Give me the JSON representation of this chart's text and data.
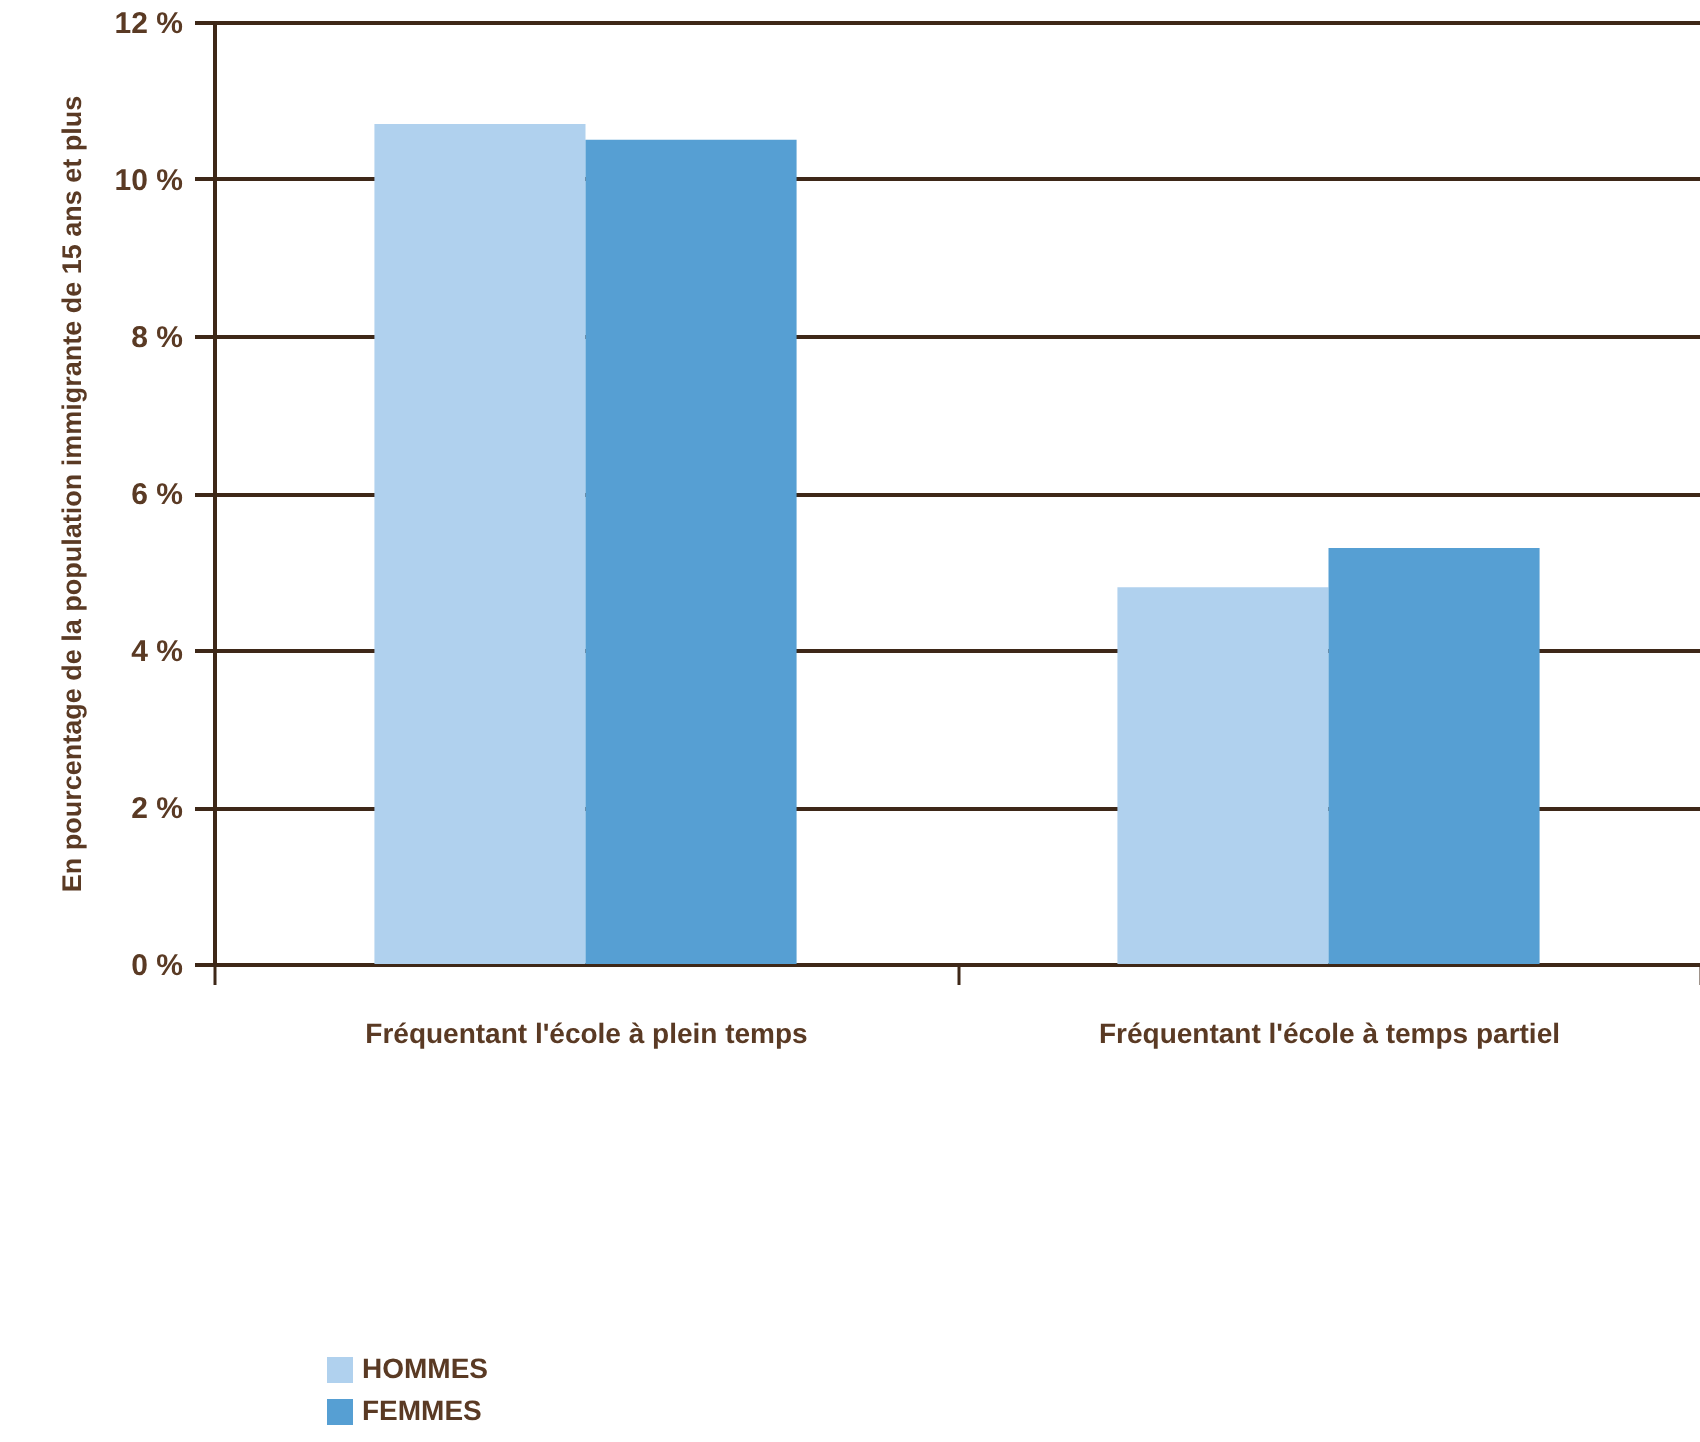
{
  "chart_data": {
    "type": "bar",
    "ylabel": "En pourcentage de la population immigrante de 15 ans et plus",
    "categories": [
      "Fréquentant l'école à plein temps",
      "Fréquentant l'école à temps partiel"
    ],
    "series": [
      {
        "name": "HOMMES",
        "color": "#b0d1ee",
        "values": [
          10.7,
          4.8
        ]
      },
      {
        "name": "FEMMES",
        "color": "#569fd3",
        "values": [
          10.5,
          5.3
        ]
      }
    ],
    "ylim": [
      0,
      12
    ],
    "yticks": [
      {
        "value": 0,
        "label": "0 %"
      },
      {
        "value": 2,
        "label": "2 %"
      },
      {
        "value": 4,
        "label": "4 %"
      },
      {
        "value": 6,
        "label": "6 %"
      },
      {
        "value": 8,
        "label": "8 %"
      },
      {
        "value": 10,
        "label": "10 %"
      },
      {
        "value": 12,
        "label": "12 %"
      }
    ],
    "grid": "y",
    "legend": "bottom left"
  }
}
